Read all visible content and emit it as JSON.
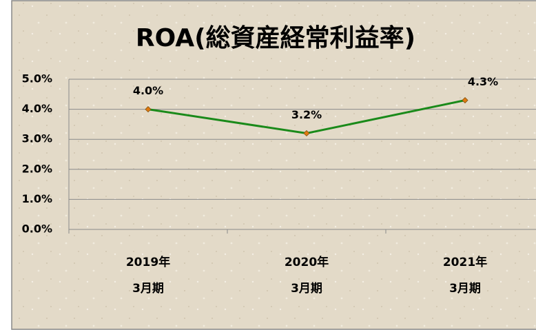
{
  "chart_data": {
    "type": "line",
    "title": "ROA(総資産経常利益率)",
    "categories": [
      "2019年\n3月期",
      "2020年\n3月期",
      "2021年\n3月期"
    ],
    "series": [
      {
        "name": "ROA",
        "color": "#1a8a1a",
        "values": [
          4.0,
          3.2,
          4.3
        ],
        "value_labels": [
          "4.0%",
          "3.2%",
          "4.3%"
        ]
      }
    ],
    "ylim": [
      0,
      5
    ],
    "yticks": [
      {
        "value": 0,
        "label": "0.0%"
      },
      {
        "value": 1,
        "label": "1.0%"
      },
      {
        "value": 2,
        "label": "2.0%"
      },
      {
        "value": 3,
        "label": "3.0%"
      },
      {
        "value": 4,
        "label": "4.0%"
      },
      {
        "value": 5,
        "label": "5.0%"
      }
    ],
    "grid": true,
    "marker_color": "#e07a10"
  }
}
